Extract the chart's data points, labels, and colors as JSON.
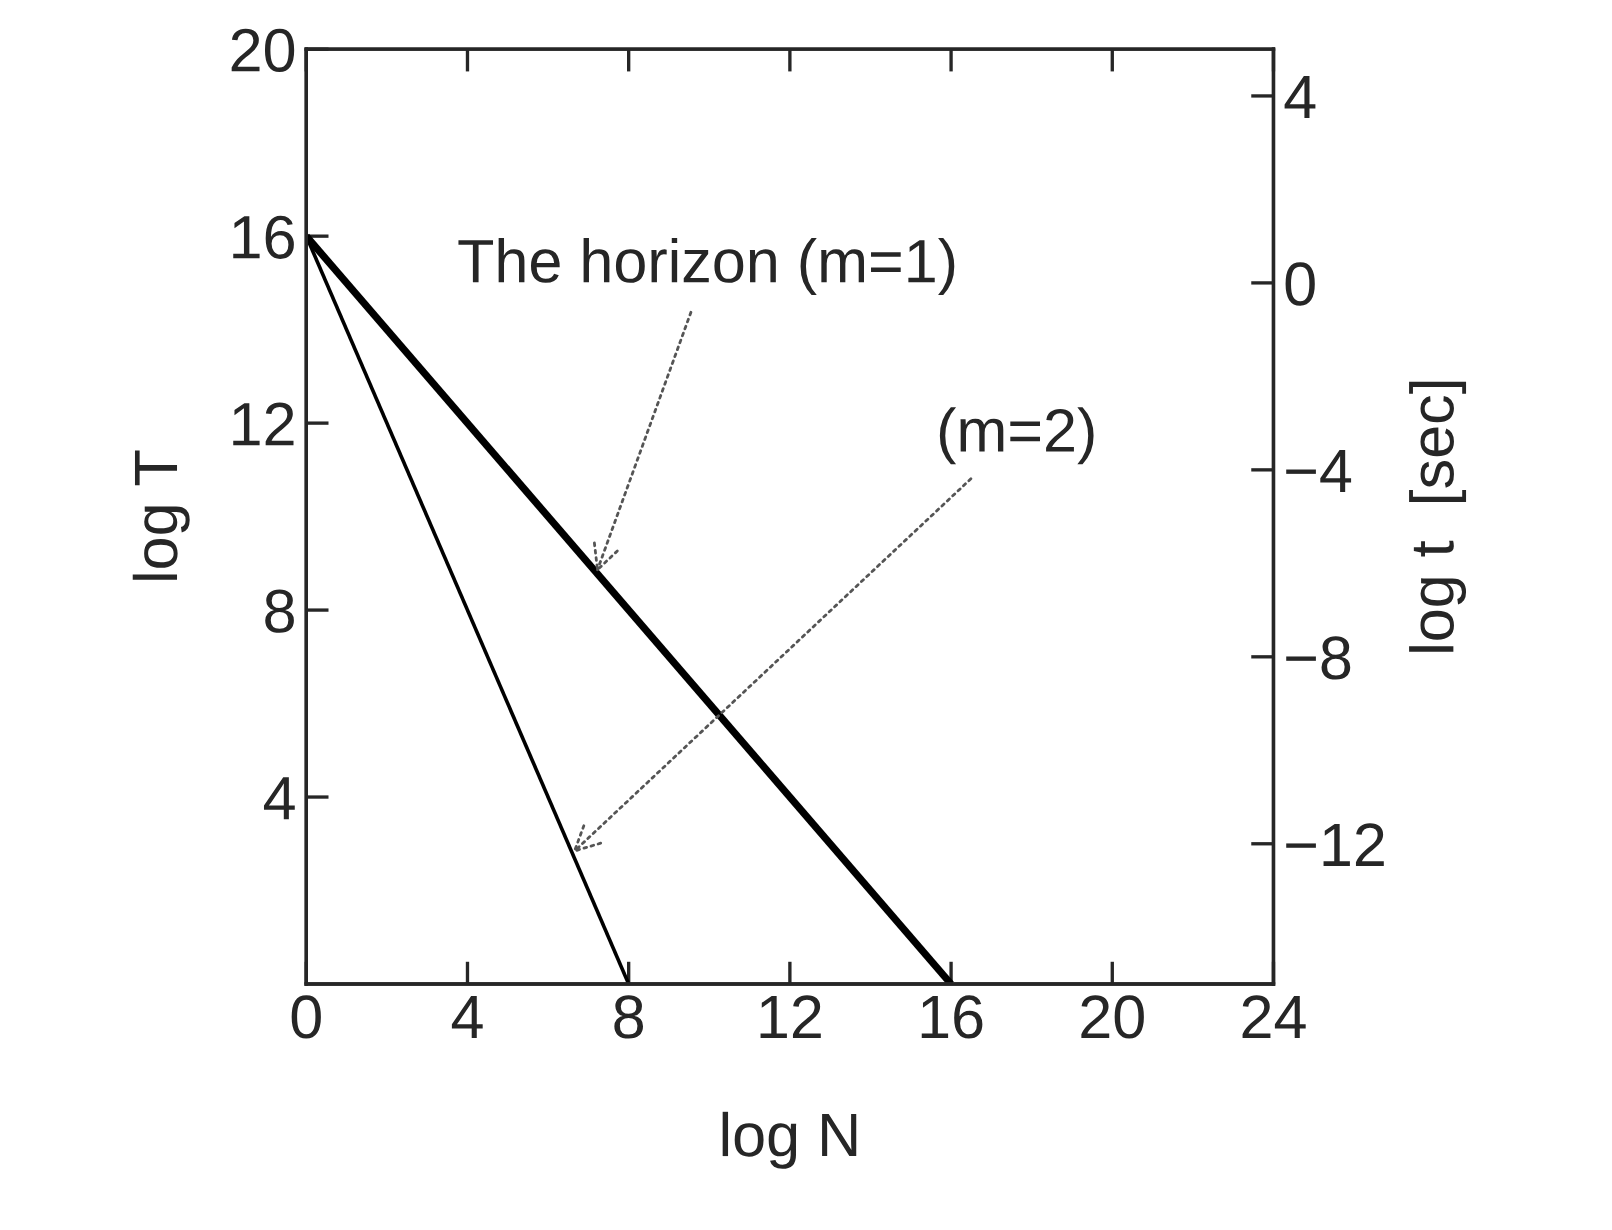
{
  "chart_data": {
    "type": "line",
    "xlabel": "log N",
    "ylabel": "log T",
    "y2label": "log t  [sec]",
    "series": [
      {
        "color": "#000000",
        "x": [
          0,
          16
        ],
        "values": [
          16,
          0
        ]
      },
      {
        "color": "#000000",
        "x": [
          0,
          8
        ],
        "values": [
          16,
          0
        ]
      }
    ],
    "xlim": [
      0,
      24
    ],
    "xticks": [
      0,
      4,
      8,
      12,
      16,
      20,
      24
    ],
    "ylim": [
      0,
      20
    ],
    "yticks": [
      4,
      8,
      12,
      16,
      20
    ],
    "y2lim": [
      -15,
      5
    ],
    "y2ticks": [
      {
        "value": -12,
        "label": "−12"
      },
      {
        "value": -8,
        "label": "−8"
      },
      {
        "value": -4,
        "label": "−4"
      },
      0,
      4
    ],
    "annotations": [
      {
        "text": "The horizon (m=1)",
        "x": 7.2,
        "y": 8.8
      },
      {
        "text": "(m=2)",
        "x": 6.6,
        "y": 2.8
      }
    ],
    "grid": false,
    "marker": "none",
    "line_style": "solid"
  }
}
